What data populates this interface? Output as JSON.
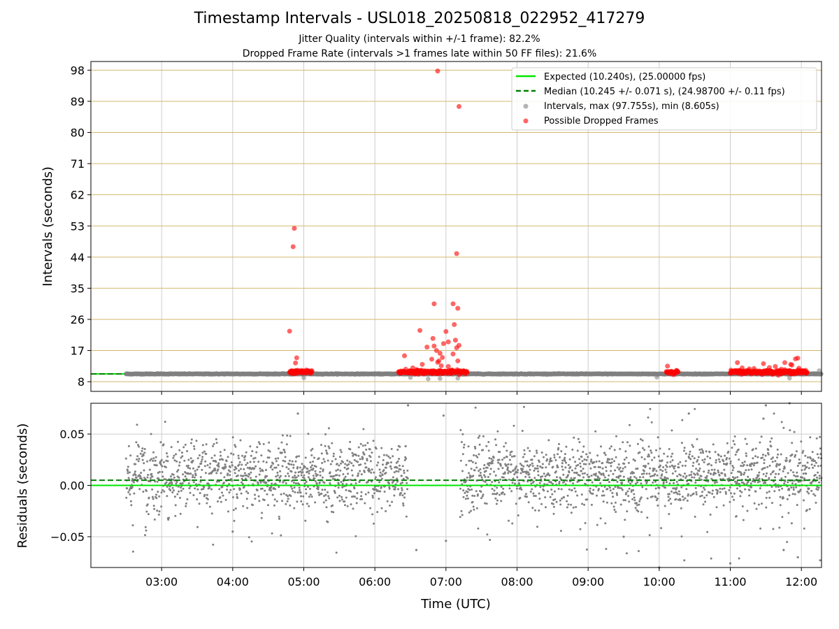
{
  "figure": {
    "title": "Timestamp Intervals - USL018_20250818_022952_417279",
    "subtitle_1": "Jitter Quality (intervals within +/-1 frame): 82.2%",
    "subtitle_2": "Dropped Frame Rate (intervals >1 frames late within 50 FF files): 21.6%"
  },
  "colors": {
    "expected": "#00e600",
    "median": "#008000",
    "intervals": "#808080",
    "dropped": "#ff0000",
    "grid_top": "#d2b96e",
    "grid": "#cccccc"
  },
  "chart_data": [
    {
      "type": "scatter",
      "panel": "intervals",
      "ylabel": "Intervals (seconds)",
      "xlabel": "",
      "xlim": [
        "02:00:18",
        "12:17:00"
      ],
      "ylim": [
        5.2,
        100.5
      ],
      "yticks": [
        8,
        17,
        26,
        35,
        44,
        53,
        62,
        71,
        80,
        89,
        98
      ],
      "grid": true,
      "legend_position": "top-right",
      "legend": [
        "Expected (10.240s), (25.00000 fps)",
        "Median (10.245 +/- 0.071 s), (24.98700 +/- 0.11 fps)",
        "Intervals, max (97.755s), min (8.605s)",
        "Possible Dropped Frames"
      ],
      "series": [
        {
          "name": "Expected (10.240s), (25.00000 fps)",
          "kind": "hline",
          "y": 10.24
        },
        {
          "name": "Median (10.245 +/- 0.071 s), (24.98700 +/- 0.11 fps)",
          "kind": "hline-dashed",
          "y": 10.245
        },
        {
          "name": "Intervals, max (97.755s), min (8.605s)",
          "kind": "scatter",
          "note": "approximately continuous intervals near the expected value from 02:29 to 12:17",
          "range": [
            "02:29:52",
            "12:17:00"
          ],
          "y_center": 10.24,
          "points": [
            {
              "x": "06:30",
              "y": 9.2
            },
            {
              "x": "06:45",
              "y": 8.8
            },
            {
              "x": "06:55",
              "y": 8.9
            },
            {
              "x": "07:10",
              "y": 9.0
            },
            {
              "x": "05:00",
              "y": 9.1
            },
            {
              "x": "09:58",
              "y": 9.3
            },
            {
              "x": "11:50",
              "y": 9.0
            },
            {
              "x": "12:15",
              "y": 11.2
            }
          ]
        },
        {
          "name": "Possible Dropped Frames",
          "kind": "scatter",
          "points": [
            {
              "x": "04:48",
              "y": 22.6
            },
            {
              "x": "04:52",
              "y": 52.3
            },
            {
              "x": "04:51",
              "y": 47.0
            },
            {
              "x": "04:53",
              "y": 13.4
            },
            {
              "x": "04:54",
              "y": 14.9
            },
            {
              "x": "04:50",
              "y": 11.0
            },
            {
              "x": "06:25",
              "y": 15.5
            },
            {
              "x": "06:32",
              "y": 12.0
            },
            {
              "x": "06:40",
              "y": 13.0
            },
            {
              "x": "06:35",
              "y": 11.5
            },
            {
              "x": "06:44",
              "y": 18.0
            },
            {
              "x": "06:48",
              "y": 14.5
            },
            {
              "x": "06:52",
              "y": 17.0
            },
            {
              "x": "06:55",
              "y": 16.2
            },
            {
              "x": "06:58",
              "y": 19.0
            },
            {
              "x": "07:00",
              "y": 22.5
            },
            {
              "x": "07:02",
              "y": 19.5
            },
            {
              "x": "06:49",
              "y": 20.5
            },
            {
              "x": "06:38",
              "y": 22.8
            },
            {
              "x": "06:50",
              "y": 18.3
            },
            {
              "x": "06:53",
              "y": 13.6
            },
            {
              "x": "06:57",
              "y": 15.0
            },
            {
              "x": "06:54",
              "y": 14.0
            },
            {
              "x": "06:56",
              "y": 12.6
            },
            {
              "x": "06:53",
              "y": 97.755
            },
            {
              "x": "07:11",
              "y": 87.5
            },
            {
              "x": "07:09",
              "y": 45.0
            },
            {
              "x": "06:50",
              "y": 30.5
            },
            {
              "x": "07:06",
              "y": 30.5
            },
            {
              "x": "07:10",
              "y": 29.2
            },
            {
              "x": "07:07",
              "y": 24.5
            },
            {
              "x": "07:08",
              "y": 20.0
            },
            {
              "x": "07:09",
              "y": 17.8
            },
            {
              "x": "07:11",
              "y": 18.5
            },
            {
              "x": "07:06",
              "y": 16.0
            },
            {
              "x": "07:10",
              "y": 14.0
            },
            {
              "x": "07:02",
              "y": 12.4
            },
            {
              "x": "06:36",
              "y": 11.2
            },
            {
              "x": "06:26",
              "y": 11.6
            },
            {
              "x": "10:07",
              "y": 12.5
            },
            {
              "x": "11:06",
              "y": 13.5
            },
            {
              "x": "11:10",
              "y": 12.0
            },
            {
              "x": "11:20",
              "y": 11.8
            },
            {
              "x": "11:28",
              "y": 13.2
            },
            {
              "x": "11:38",
              "y": 12.4
            },
            {
              "x": "11:46",
              "y": 13.5
            },
            {
              "x": "11:51",
              "y": 13.0
            },
            {
              "x": "11:55",
              "y": 14.6
            },
            {
              "x": "11:57",
              "y": 14.8
            },
            {
              "x": "11:52",
              "y": 12.8
            },
            {
              "x": "11:58",
              "y": 11.9
            },
            {
              "x": "11:43",
              "y": 11.6
            },
            {
              "x": "11:33",
              "y": 12.1
            },
            {
              "x": "11:16",
              "y": 11.7
            }
          ],
          "clusters": [
            {
              "x_start": "04:48",
              "x_end": "05:07",
              "y": 10.8
            },
            {
              "x_start": "06:20",
              "x_end": "07:18",
              "y": 10.8
            },
            {
              "x_start": "10:06",
              "x_end": "10:16",
              "y": 10.8
            },
            {
              "x_start": "11:00",
              "x_end": "12:05",
              "y": 10.8
            }
          ]
        }
      ]
    },
    {
      "type": "scatter",
      "panel": "residuals",
      "ylabel": "Residuals (seconds)",
      "xlabel": "Time (UTC)",
      "xlim": [
        "02:00:18",
        "12:17:00"
      ],
      "ylim": [
        -0.08,
        0.08
      ],
      "yticks": [
        0.05,
        0.0,
        -0.05
      ],
      "ytick_labels": [
        "0.05",
        "0.00",
        "−0.05"
      ],
      "xticks": [
        "03:00",
        "04:00",
        "05:00",
        "06:00",
        "07:00",
        "08:00",
        "09:00",
        "10:00",
        "11:00",
        "12:00"
      ],
      "grid": true,
      "series": [
        {
          "name": "Expected",
          "kind": "hline",
          "y": 0.0
        },
        {
          "name": "Median",
          "kind": "hline-dashed",
          "y": 0.005
        },
        {
          "name": "Residuals",
          "kind": "scatter",
          "segments": [
            {
              "x_start": "02:30",
              "x_end": "06:28",
              "spread": 0.03
            },
            {
              "x_start": "07:12",
              "x_end": "12:17",
              "spread": 0.035
            }
          ],
          "outliers": [
            {
              "x": "04:55",
              "y": 0.07
            },
            {
              "x": "06:28",
              "y": 0.078
            },
            {
              "x": "06:35",
              "y": -0.063
            },
            {
              "x": "06:58",
              "y": 0.068
            },
            {
              "x": "07:00",
              "y": -0.054
            },
            {
              "x": "04:00",
              "y": -0.045
            },
            {
              "x": "10:00",
              "y": -0.08
            },
            {
              "x": "11:00",
              "y": -0.076
            },
            {
              "x": "11:30",
              "y": 0.078
            },
            {
              "x": "11:50",
              "y": 0.08
            },
            {
              "x": "11:45",
              "y": -0.063
            },
            {
              "x": "11:57",
              "y": -0.07
            },
            {
              "x": "11:28",
              "y": 0.065
            },
            {
              "x": "09:30",
              "y": -0.05
            },
            {
              "x": "10:25",
              "y": 0.07
            }
          ]
        }
      ]
    }
  ]
}
